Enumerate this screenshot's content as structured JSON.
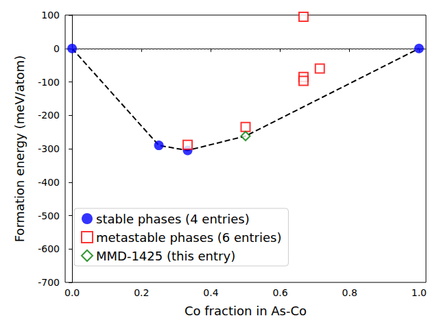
{
  "chart_data": {
    "type": "scatter",
    "x_label": "Co fraction in As-Co",
    "y_label": "Formation energy (meV/atom)",
    "xlim": [
      -0.02,
      1.02
    ],
    "xticks": [
      {
        "value": 0,
        "label": "0.0"
      },
      {
        "value": 0.2,
        "label": "0.2"
      },
      {
        "value": 0.4,
        "label": "0.4"
      },
      {
        "value": 0.6,
        "label": "0.6"
      },
      {
        "value": 0.8,
        "label": "0.8"
      },
      {
        "value": 1,
        "label": "1.0"
      }
    ],
    "ylim": [
      -700,
      100
    ],
    "yticks": [
      -700,
      -600,
      -500,
      -400,
      -300,
      -200,
      -100,
      0,
      100
    ],
    "grid": false,
    "legend": "lower left",
    "series": [
      {
        "type": "hline",
        "color": "#808080",
        "line_style": "dotted",
        "values": [
          0
        ]
      },
      {
        "type": "line",
        "color": "#000000",
        "line_style": "dashed",
        "x": [
          0,
          0.25,
          0.333,
          0.5,
          1
        ],
        "values": [
          0,
          -290,
          -305,
          -262,
          0
        ]
      },
      {
        "name": "stable phases (4 entries)",
        "type": "scatter",
        "color": "#0000ff",
        "marker": "circle",
        "x": [
          0,
          0.25,
          0.333,
          1
        ],
        "values": [
          0,
          -290,
          -305,
          0
        ]
      },
      {
        "name": "metastable phases (6 entries)",
        "type": "scatter",
        "color": "#ff0000",
        "marker": "open_square",
        "x": [
          0.333,
          0.5,
          0.667,
          0.667,
          0.667,
          0.714
        ],
        "values": [
          -288,
          -235,
          95,
          -85,
          -97,
          -60
        ]
      },
      {
        "name": "MMD-1425 (this entry)",
        "type": "scatter",
        "color": "#008000",
        "marker": "open_diamond",
        "x": [
          0.5
        ],
        "values": [
          -262
        ]
      }
    ]
  }
}
